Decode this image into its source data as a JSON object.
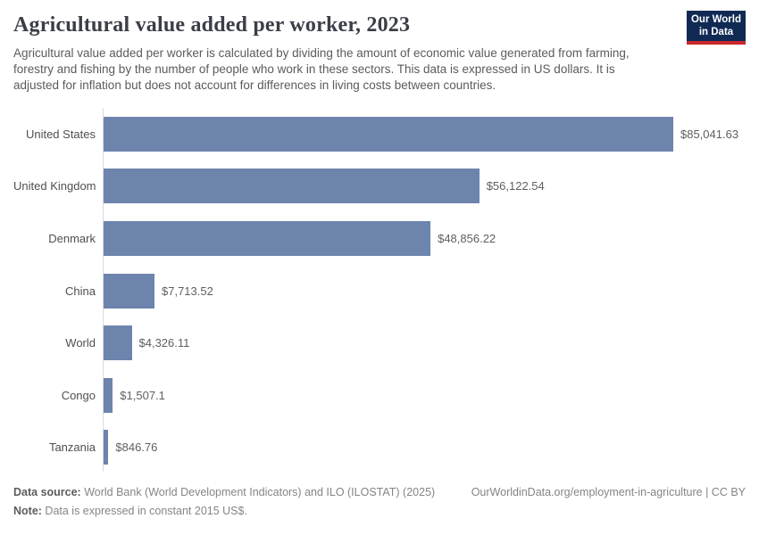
{
  "header": {
    "title": "Agricultural value added per worker, 2023",
    "subtitle": "Agricultural value added per worker is calculated by dividing the amount of economic value generated from farming, forestry and fishing by the number of people who work in these sectors. This data is expressed in US dollars. It is adjusted for inflation but does not account for differences in living costs between countries.",
    "logo": {
      "line1": "Our World",
      "line2": "in Data",
      "bg_color": "#102a54",
      "accent_color": "#c8282d"
    }
  },
  "chart_data": {
    "type": "bar",
    "orientation": "horizontal",
    "title": "Agricultural value added per worker, 2023",
    "categories": [
      "United States",
      "United Kingdom",
      "Denmark",
      "China",
      "World",
      "Congo",
      "Tanzania"
    ],
    "values": [
      85041.63,
      56122.54,
      48856.22,
      7713.52,
      4326.11,
      1507.1,
      846.76
    ],
    "value_labels": [
      "$85,041.63",
      "$56,122.54",
      "$48,856.22",
      "$7,713.52",
      "$4,326.11",
      "$1,507.1",
      "$846.76"
    ],
    "xlim": [
      0,
      85041.63
    ],
    "bar_color": "#6d84ad",
    "grid": false,
    "legend": "none"
  },
  "footer": {
    "datasource_label": "Data source:",
    "datasource_text": " World Bank (World Development Indicators) and ILO (ILOSTAT) (2025)",
    "link_text": "OurWorldinData.org/employment-in-agriculture | CC BY",
    "note_label": "Note:",
    "note_text": " Data is expressed in constant 2015 US$."
  }
}
